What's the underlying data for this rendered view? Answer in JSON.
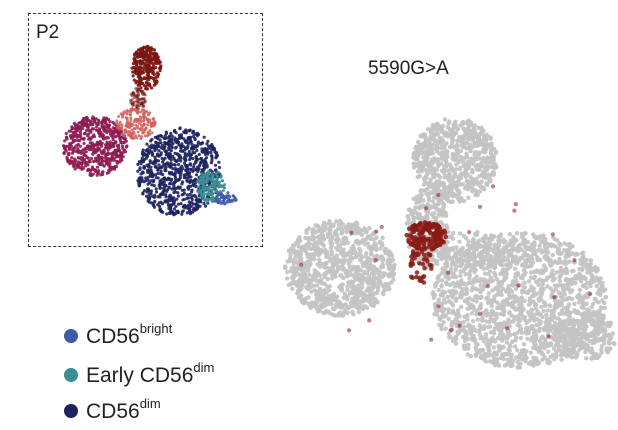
{
  "inset": {
    "label": "P2"
  },
  "main_plot": {
    "title": "5590G>A"
  },
  "legend": [
    {
      "base": "CD56",
      "sup": "bright",
      "color": "#3f5aa8"
    },
    {
      "prefix": "Early ",
      "base": "CD56",
      "sup": "dim",
      "color": "#3a8f94"
    },
    {
      "base": "CD56",
      "sup": "dim",
      "color": "#1e2360"
    }
  ],
  "colors": {
    "background_cells": "#c4c4c4",
    "highlight": "#8b1a14",
    "cluster_top": "#7a1512",
    "cluster_left": "#8e1b52",
    "cluster_salmon": "#d2605c",
    "cluster_cd56dim": "#1e2360",
    "cluster_early": "#3a8f94",
    "cluster_bright": "#3f5aa8"
  }
}
